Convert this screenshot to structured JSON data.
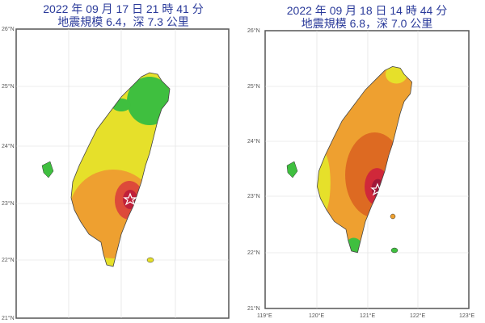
{
  "maps": [
    {
      "title_line1": "2022 年 09 月 17 日 21 時 41 分",
      "title_line2": "地震規模 6.4，深 7.3 公里",
      "lat_labels": [
        "26°N",
        "25°N",
        "24°N",
        "23°N",
        "22°N",
        "21°N"
      ],
      "lon_labels": []
    },
    {
      "title_line1": "2022 年 09 月 18 日 14 時 44 分",
      "title_line2": "地震規模 6.8，深 7.0 公里",
      "lat_labels": [
        "26°N",
        "25°N",
        "24°N",
        "23°N",
        "22°N",
        "21°N"
      ],
      "lon_labels": [
        "119°E",
        "120°E",
        "121°E",
        "122°E",
        "123°E"
      ]
    }
  ],
  "colors": {
    "green": "#3fbf3f",
    "yellow": "#e6e02a",
    "orange": "#eea030",
    "dark_orange": "#dd6a22",
    "red": "#d0283a",
    "title": "#2a3a9a"
  }
}
